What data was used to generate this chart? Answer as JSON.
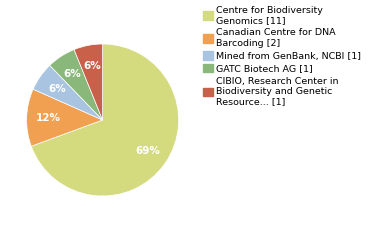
{
  "labels": [
    "Centre for Biodiversity\nGenomics [11]",
    "Canadian Centre for DNA\nBarcoding [2]",
    "Mined from GenBank, NCBI [1]",
    "GATC Biotech AG [1]",
    "CIBIO, Research Center in\nBiodiversity and Genetic\nResource... [1]"
  ],
  "values": [
    68,
    12,
    6,
    6,
    6
  ],
  "colors": [
    "#d4db7f",
    "#f0a050",
    "#a8c4e0",
    "#8ab87a",
    "#c8604a"
  ],
  "startangle": 90,
  "background_color": "#ffffff",
  "pct_fontsize": 7.5,
  "legend_fontsize": 6.8
}
